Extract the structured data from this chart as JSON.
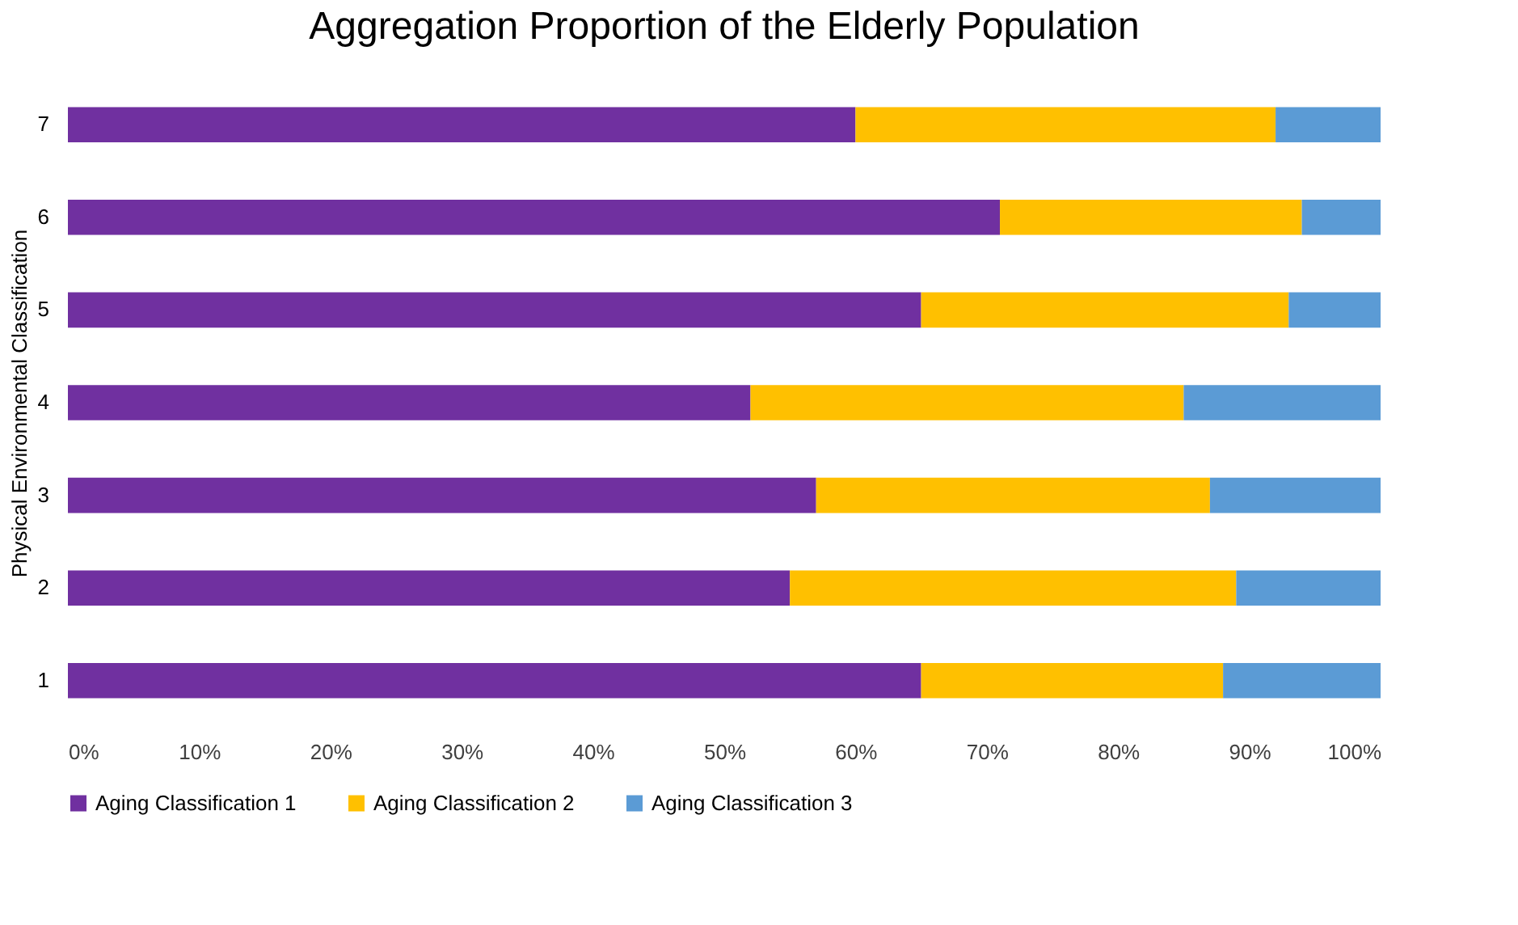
{
  "chart_data": {
    "type": "bar",
    "orientation": "horizontal",
    "stacked": true,
    "title": "Aggregation Proportion of the Elderly Population",
    "ylabel": "Physical Environmental Classification",
    "categories": [
      "7",
      "6",
      "5",
      "4",
      "3",
      "2",
      "1"
    ],
    "series": [
      {
        "name": "Aging Classification 1",
        "color": "#7030a0",
        "values": [
          60,
          71,
          65,
          52,
          57,
          55,
          65
        ]
      },
      {
        "name": "Aging Classification 2",
        "color": "#ffc000",
        "values": [
          32,
          23,
          28,
          33,
          30,
          34,
          23
        ]
      },
      {
        "name": "Aging Classification 3",
        "color": "#5b9bd5",
        "values": [
          8,
          6,
          7,
          15,
          13,
          11,
          12
        ]
      }
    ],
    "xlim": [
      0,
      100
    ],
    "xticks": [
      {
        "value": 0,
        "label": "0%"
      },
      {
        "value": 10,
        "label": "10%"
      },
      {
        "value": 20,
        "label": "20%"
      },
      {
        "value": 30,
        "label": "30%"
      },
      {
        "value": 40,
        "label": "40%"
      },
      {
        "value": 50,
        "label": "50%"
      },
      {
        "value": 60,
        "label": "60%"
      },
      {
        "value": 70,
        "label": "70%"
      },
      {
        "value": 80,
        "label": "80%"
      },
      {
        "value": 90,
        "label": "90%"
      },
      {
        "value": 100,
        "label": "100%"
      }
    ],
    "grid": false,
    "legend": "bottom"
  }
}
